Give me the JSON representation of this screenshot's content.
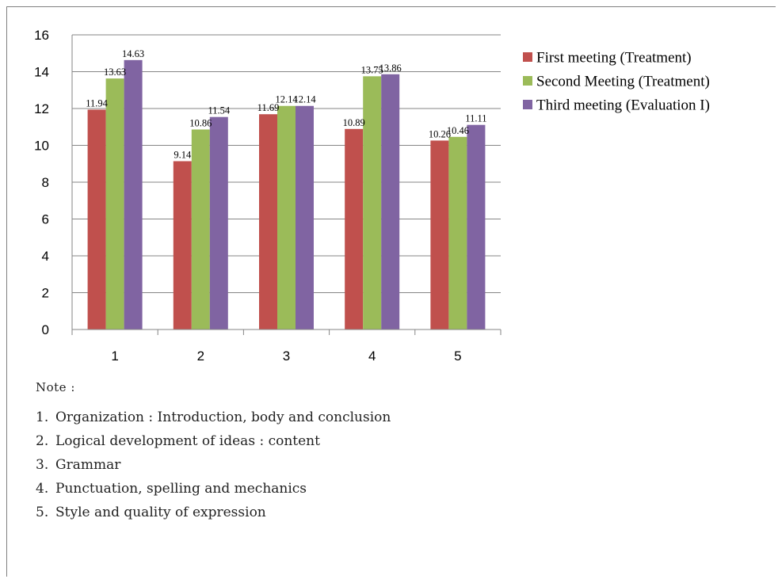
{
  "chart_data": {
    "type": "bar",
    "categories": [
      "1",
      "2",
      "3",
      "4",
      "5"
    ],
    "series": [
      {
        "name": "First meeting (Treatment)",
        "color": "#c0504d",
        "values": [
          11.94,
          9.14,
          11.69,
          10.89,
          10.26
        ]
      },
      {
        "name": "Second Meeting (Treatment)",
        "color": "#9bbb59",
        "values": [
          13.63,
          10.86,
          12.14,
          13.75,
          10.46
        ]
      },
      {
        "name": "Third meeting (Evaluation I)",
        "color": "#8064a2",
        "values": [
          14.63,
          11.54,
          12.14,
          13.86,
          11.11
        ]
      }
    ],
    "data_labels": [
      [
        "11.94",
        "9.14",
        "11.69",
        "10.89",
        "10.26"
      ],
      [
        "13.63",
        "10.86",
        "12.14",
        "13.75",
        "10.46"
      ],
      [
        "14.63",
        "11.54",
        "12.14",
        "13.86",
        "11.11"
      ]
    ],
    "yticks": [
      "0",
      "2",
      "4",
      "6",
      "8",
      "10",
      "12",
      "14",
      "16"
    ],
    "ylim": [
      0,
      16
    ],
    "grid": true,
    "legend": "right"
  },
  "note": {
    "title": "Note :",
    "items": [
      {
        "num": "1.",
        "text": "Organization : Introduction, body and conclusion"
      },
      {
        "num": "2.",
        "text": "Logical development of ideas : content"
      },
      {
        "num": "3.",
        "text": "Grammar"
      },
      {
        "num": "4.",
        "text": "Punctuation, spelling and mechanics"
      },
      {
        "num": "5.",
        "text": "Style and quality of expression"
      }
    ]
  }
}
